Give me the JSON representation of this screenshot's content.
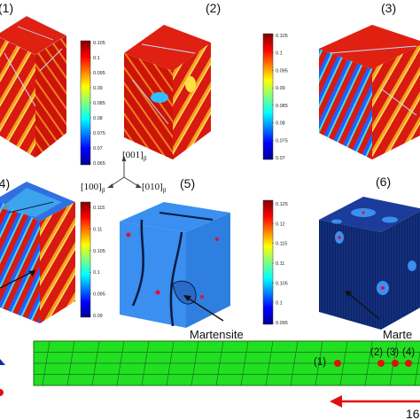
{
  "panels": [
    {
      "label": "(1)"
    },
    {
      "label": "(2)"
    },
    {
      "label": "(3)"
    },
    {
      "label": "(4)"
    },
    {
      "label": "(5)"
    },
    {
      "label": "(6)"
    }
  ],
  "colorbars": [
    {
      "ticks": [
        "0.105",
        "0.1",
        "0.095",
        "0.09",
        "0.085",
        "0.08",
        "0.075",
        "0.07",
        "0.065"
      ]
    },
    {
      "ticks": [
        "0.105",
        "0.1",
        "0.095",
        "0.09",
        "0.085",
        "0.08",
        "0.075",
        "0.07"
      ]
    },
    {
      "ticks": [
        "0.115",
        "0.11",
        "0.105",
        "0.1",
        "0.095",
        "0.09"
      ]
    },
    {
      "ticks": [
        "0.125",
        "0.12",
        "0.115",
        "0.11",
        "0.105",
        "0.1",
        "0.095"
      ]
    }
  ],
  "axes": {
    "a001": "[001]",
    "a100": "[100]",
    "a010": "[010]",
    "subscript": "β"
  },
  "annotations": {
    "martensite_5": "Martensite",
    "martensite_6": "Marte"
  },
  "strip": {
    "point_labels": [
      "(1)",
      "(2)",
      "(3)",
      "(4)"
    ],
    "partial_number": "16"
  },
  "colors": {
    "mesh_green": "#21e021",
    "mesh_line": "#1a6b1a",
    "point_red": "#e01010",
    "arrow_red": "#e01010",
    "cube_blue": "#3a8ff0",
    "cube_navy": "#122e7c"
  }
}
